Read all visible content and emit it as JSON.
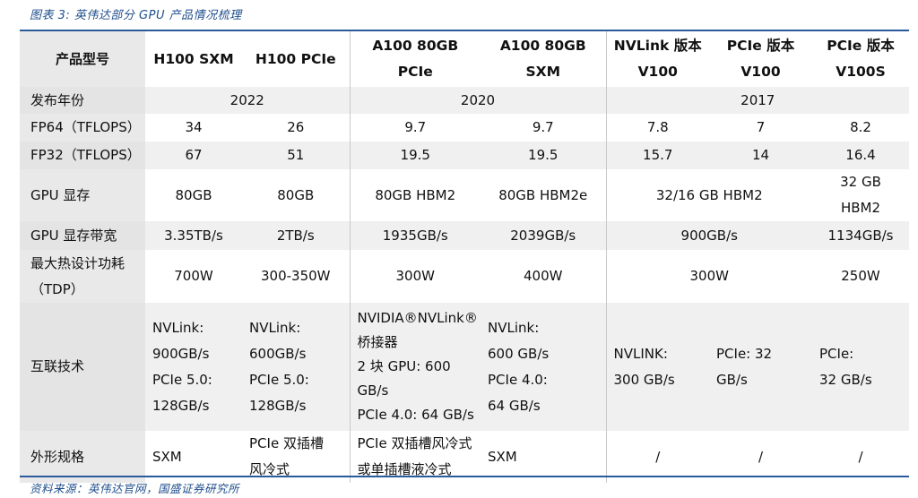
{
  "caption": "图表 3:  英伟达部分 GPU 产品情况梳理",
  "source": "资料来源：英伟达官网，国盛证券研究所",
  "header": {
    "label": "产品型号",
    "models": [
      {
        "lines": [
          "H100 SXM"
        ]
      },
      {
        "lines": [
          "H100 PCIe"
        ]
      },
      {
        "lines": [
          "A100 80GB",
          "PCIe"
        ]
      },
      {
        "lines": [
          "A100 80GB",
          "SXM"
        ]
      },
      {
        "lines": [
          "NVLink 版本",
          "V100"
        ]
      },
      {
        "lines": [
          "PCIe 版本",
          "V100"
        ]
      },
      {
        "lines": [
          "PCIe 版本",
          "V100S"
        ]
      }
    ]
  },
  "rows": {
    "year": {
      "label": "发布年份",
      "h100": "2022",
      "a100": "2020",
      "v100": "2017"
    },
    "fp64": {
      "label": "FP64（TFLOPS）",
      "values": [
        "34",
        "26",
        "9.7",
        "9.7",
        "7.8",
        "7",
        "8.2"
      ]
    },
    "fp32": {
      "label": "FP32（TFLOPS）",
      "values": [
        "67",
        "51",
        "19.5",
        "19.5",
        "15.7",
        "14",
        "16.4"
      ]
    },
    "mem": {
      "label": "GPU 显存",
      "h100sxm": "80GB",
      "h100pcie": "80GB",
      "a100pcie": "80GB HBM2",
      "a100sxm": "80GB HBM2e",
      "v100": "32/16 GB HBM2",
      "v100s": [
        "32 GB",
        "HBM2"
      ]
    },
    "bw": {
      "label": "GPU 显存带宽",
      "h100sxm": "3.35TB/s",
      "h100pcie": "2TB/s",
      "a100pcie": "1935GB/s",
      "a100sxm": "2039GB/s",
      "v100": "900GB/s",
      "v100s": "1134GB/s"
    },
    "tdp": {
      "label": [
        "最大热设计功耗",
        "（TDP）"
      ],
      "h100sxm": "700W",
      "h100pcie": "300-350W",
      "a100pcie": "300W",
      "a100sxm": "400W",
      "v100": "300W",
      "v100s": "250W"
    },
    "interconnect": {
      "label": "互联技术",
      "cells": [
        [
          "NVLink:",
          "900GB/s",
          "PCIe 5.0:",
          "128GB/s"
        ],
        [
          "NVLink:",
          "600GB/s",
          "PCIe 5.0:",
          "128GB/s"
        ],
        [
          "NVIDIA®NVLink®",
          "桥接器",
          "2 块 GPU:  600",
          "GB/s",
          "PCIe 4.0:  64 GB/s"
        ],
        [
          "NVLink:",
          "600 GB/s",
          "PCIe 4.0:",
          "64 GB/s"
        ],
        [
          "NVLINK:",
          "300 GB/s"
        ],
        [
          "PCIe:  32",
          "GB/s"
        ],
        [
          "PCIe:",
          "32 GB/s"
        ]
      ]
    },
    "form": {
      "label": "外形规格",
      "cells": [
        [
          "SXM"
        ],
        [
          "PCIe  双插槽",
          "风冷式"
        ],
        [
          "PCIe 双插槽风冷式",
          "或单插槽液冷式"
        ],
        [
          "SXM"
        ],
        [
          "/"
        ],
        [
          "/"
        ],
        [
          "/"
        ]
      ]
    }
  }
}
